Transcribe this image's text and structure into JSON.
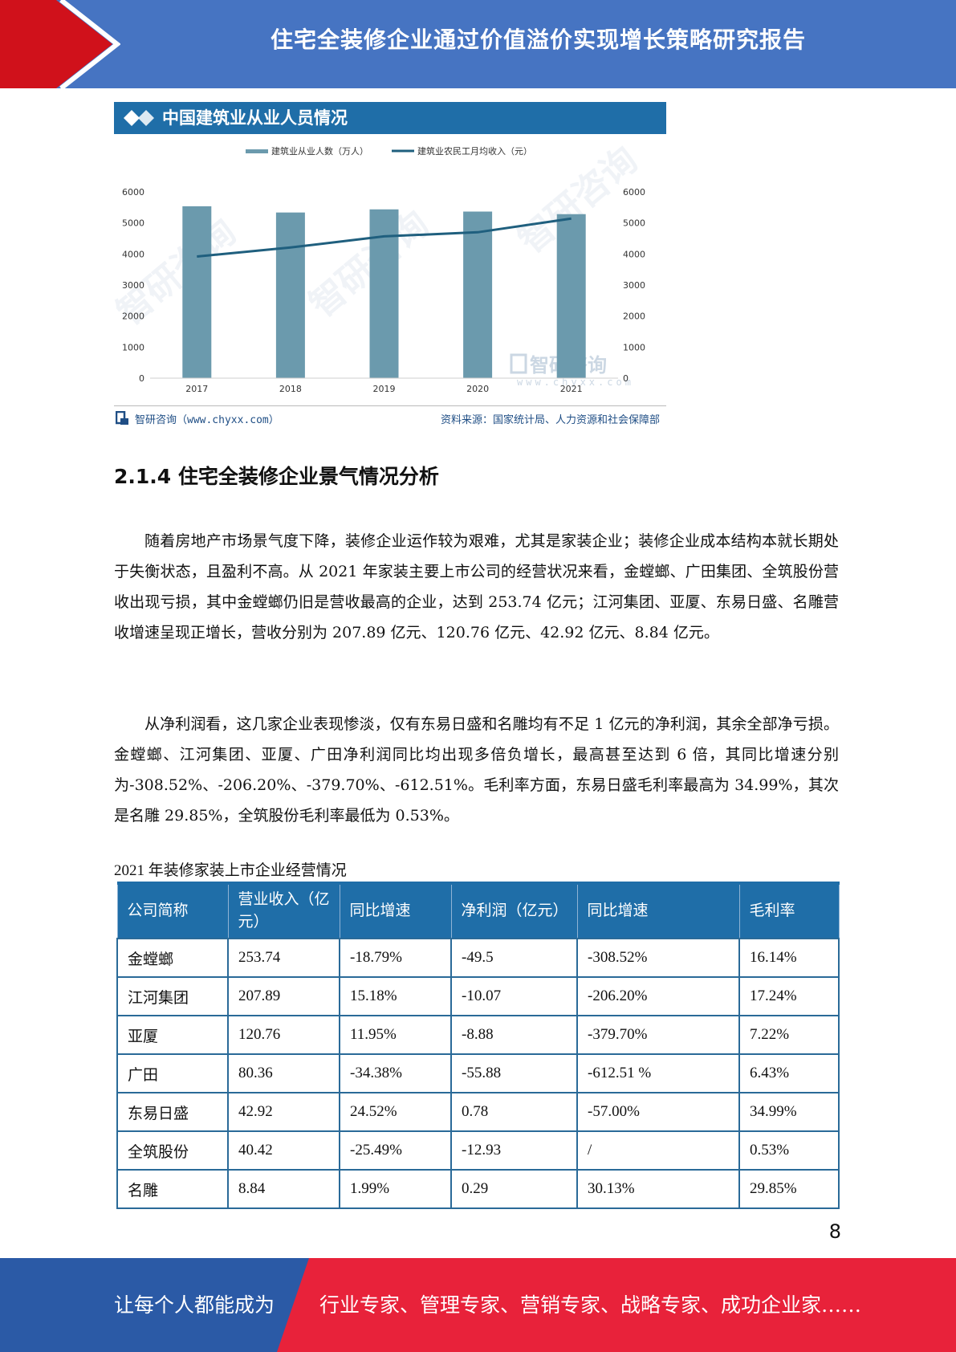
{
  "header": {
    "title": "住宅全装修企业通过价值溢价实现增长策略研究报告",
    "accent_red": "#d0111b",
    "accent_blue": "#4674c2"
  },
  "figure": {
    "banner_title": "中国建筑业从业人员情况",
    "source_left": "智研咨询（www.chyxx.com）",
    "source_right": "资料来源：国家统计局、人力资源和社会保障部",
    "watermark_brand": "智研咨询",
    "watermark_url": "www.chyxx.com"
  },
  "chart_data": {
    "type": "bar",
    "categories": [
      "2017",
      "2018",
      "2019",
      "2020",
      "2021"
    ],
    "series": [
      {
        "name": "建筑业从业人数（万人）",
        "type": "bar",
        "axis": "left",
        "color": "#6b9aad",
        "values": [
          5537,
          5336,
          5437,
          5366,
          5283
        ]
      },
      {
        "name": "建筑业农民工月均收入（元）",
        "type": "line",
        "axis": "right",
        "color": "#1f5f7e",
        "values": [
          3918,
          4209,
          4567,
          4699,
          5141
        ]
      }
    ],
    "y_left": {
      "min": 0,
      "max": 6000,
      "ticks": [
        "0",
        "1000",
        "2000",
        "3000",
        "4000",
        "5000",
        "6000"
      ]
    },
    "y_right": {
      "min": 0,
      "max": 6000,
      "ticks": [
        "0",
        "1000",
        "2000",
        "3000",
        "4000",
        "5000",
        "6000"
      ]
    },
    "legend": "top-center",
    "grid": false
  },
  "section": {
    "heading": "2.1.4 住宅全装修企业景气情况分析"
  },
  "paragraphs": [
    "随着房地产市场景气度下降，装修企业运作较为艰难，尤其是家装企业；装修企业成本结构本就长期处于失衡状态，且盈利不高。从 2021 年家装主要上市公司的经营状况来看，金螳螂、广田集团、全筑股份营收出现亏损，其中金螳螂仍旧是营收最高的企业，达到 253.74 亿元；江河集团、亚厦、东易日盛、名雕营收增速呈现正增长，营收分别为 207.89 亿元、120.76 亿元、42.92 亿元、8.84 亿元。",
    "从净利润看，这几家企业表现惨淡，仅有东易日盛和名雕均有不足 1 亿元的净利润，其余全部净亏损。金螳螂、江河集团、亚厦、广田净利润同比均出现多倍负增长，最高甚至达到 6 倍，其同比增速分别为-308.52%、-206.20%、-379.70%、-612.51%。毛利率方面，东易日盛毛利率最高为 34.99%，其次是名雕 29.85%，全筑股份毛利率最低为 0.53%。"
  ],
  "table": {
    "caption": "2021 年装修家装上市企业经营情况",
    "headers": [
      "公司简称",
      "营业收入（亿元）",
      "同比增速",
      "净利润（亿元）",
      "同比增速",
      "毛利率"
    ],
    "rows": [
      [
        "金螳螂",
        "253.74",
        "-18.79%",
        "-49.5",
        "-308.52%",
        "16.14%"
      ],
      [
        "江河集团",
        "207.89",
        "15.18%",
        "-10.07",
        "-206.20%",
        "17.24%"
      ],
      [
        "亚厦",
        "120.76",
        "11.95%",
        "-8.88",
        "-379.70%",
        "7.22%"
      ],
      [
        "广田",
        "80.36",
        "-34.38%",
        "-55.88",
        "-612.51 %",
        "6.43%"
      ],
      [
        "东易日盛",
        "42.92",
        "24.52%",
        "0.78",
        "-57.00%",
        "34.99%"
      ],
      [
        "全筑股份",
        "40.42",
        "-25.49%",
        "-12.93",
        "/",
        "0.53%"
      ],
      [
        "名雕",
        "8.84",
        "1.99%",
        "0.29",
        "30.13%",
        "29.85%"
      ]
    ]
  },
  "page_number": "8",
  "footer": {
    "left_text": "让每个人都能成为",
    "right_text": "行业专家、管理专家、营销专家、战略专家、成功企业家……",
    "left_color": "#2b5aa6",
    "right_color": "#e8223a"
  }
}
